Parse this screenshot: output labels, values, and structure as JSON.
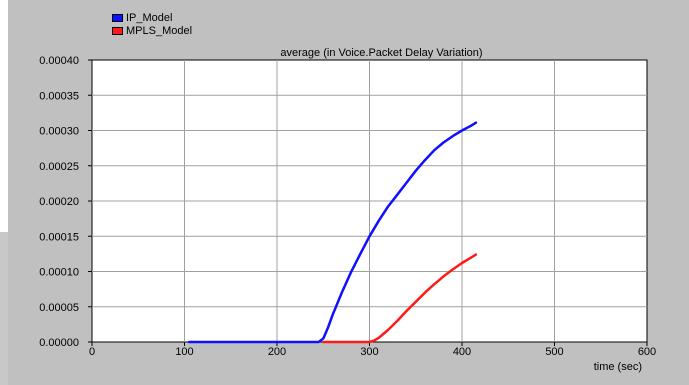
{
  "chart_data": {
    "type": "line",
    "title": "average (in Voice.Packet Delay Variation)",
    "xlabel": "time (sec)",
    "ylabel": "",
    "xlim": [
      0,
      600
    ],
    "ylim": [
      0,
      0.0004
    ],
    "x_ticks": [
      "0",
      "100",
      "200",
      "300",
      "400",
      "500",
      "600"
    ],
    "y_ticks": [
      "0.00000",
      "0.00005",
      "0.00010",
      "0.00015",
      "0.00020",
      "0.00025",
      "0.00030",
      "0.00035",
      "0.00040"
    ],
    "grid": true,
    "legend_position": "top-left",
    "series": [
      {
        "name": "IP_Model",
        "color": "#1010ff",
        "x": [
          105,
          200,
          245,
          250,
          255,
          260,
          270,
          280,
          290,
          300,
          310,
          320,
          330,
          340,
          350,
          360,
          370,
          380,
          390,
          400,
          410,
          415
        ],
        "y": [
          0,
          0,
          0,
          5e-06,
          2e-05,
          3.8e-05,
          7e-05,
          9.9e-05,
          0.000125,
          0.00015,
          0.000172,
          0.000192,
          0.000209,
          0.000226,
          0.000243,
          0.000258,
          0.000272,
          0.000283,
          0.000292,
          0.0003,
          0.000307,
          0.000311
        ]
      },
      {
        "name": "MPLS_Model",
        "color": "#ff1a1a",
        "x": [
          250,
          300,
          305,
          310,
          320,
          330,
          340,
          350,
          360,
          370,
          380,
          390,
          400,
          410,
          415
        ],
        "y": [
          0,
          0,
          2e-06,
          6e-06,
          1.7e-05,
          3e-05,
          4.4e-05,
          5.7e-05,
          7e-05,
          8.2e-05,
          9.3e-05,
          0.000103,
          0.000112,
          0.00012,
          0.000124
        ]
      }
    ]
  }
}
